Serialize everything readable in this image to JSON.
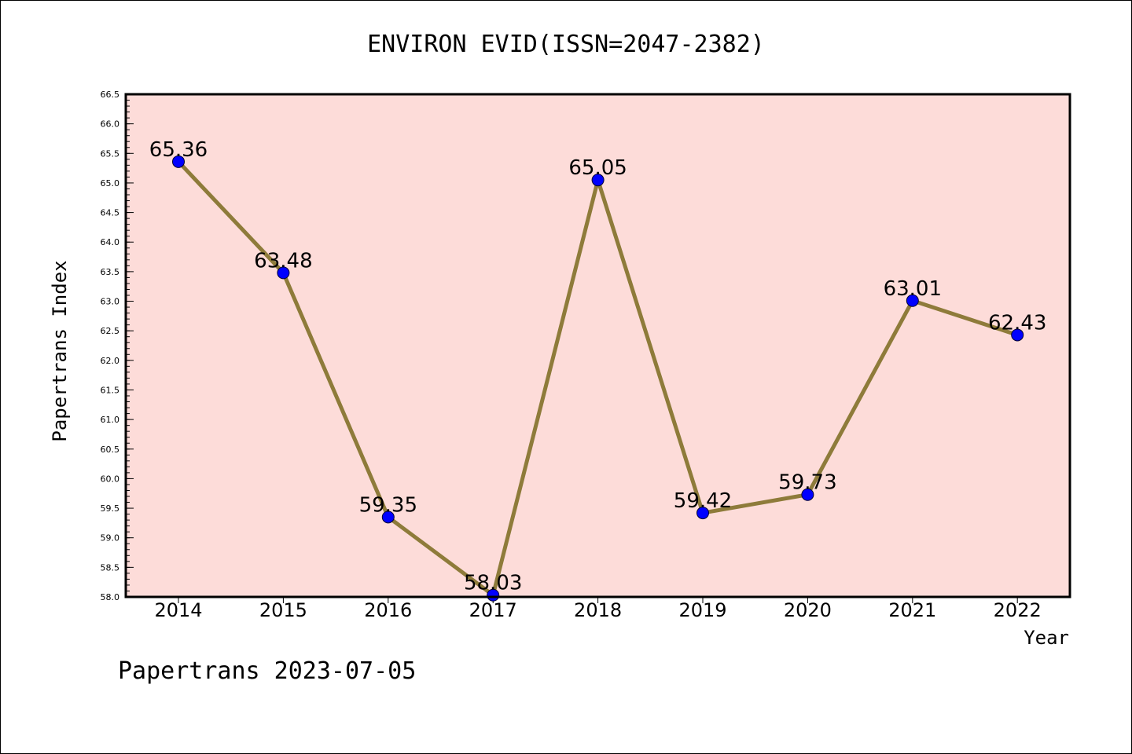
{
  "chart_data": {
    "type": "line",
    "title": "ENVIRON EVID(ISSN=2047-2382)",
    "xlabel": "Year",
    "ylabel": "Papertrans Index",
    "categories": [
      "2014",
      "2015",
      "2016",
      "2017",
      "2018",
      "2019",
      "2020",
      "2021",
      "2022"
    ],
    "values": [
      65.36,
      63.48,
      59.35,
      58.03,
      65.05,
      59.42,
      59.73,
      63.01,
      62.43
    ],
    "data_labels": [
      "65.36",
      "63.48",
      "59.35",
      "58.03",
      "65.05",
      "59.42",
      "59.73",
      "63.01",
      "62.43"
    ],
    "ylim": [
      58.0,
      66.5
    ],
    "y_ticks": [
      "58.0",
      "58.5",
      "59.0",
      "59.5",
      "60.0",
      "60.5",
      "61.0",
      "61.5",
      "62.0",
      "62.5",
      "63.0",
      "63.5",
      "64.0",
      "64.5",
      "65.0",
      "65.5",
      "66.0",
      "66.5"
    ],
    "grid": false,
    "colors": {
      "plot_background": "#fddcd9",
      "line": "#8e7b3a",
      "marker": "#0000ff"
    }
  },
  "footer": {
    "text": "Papertrans 2023-07-05"
  }
}
